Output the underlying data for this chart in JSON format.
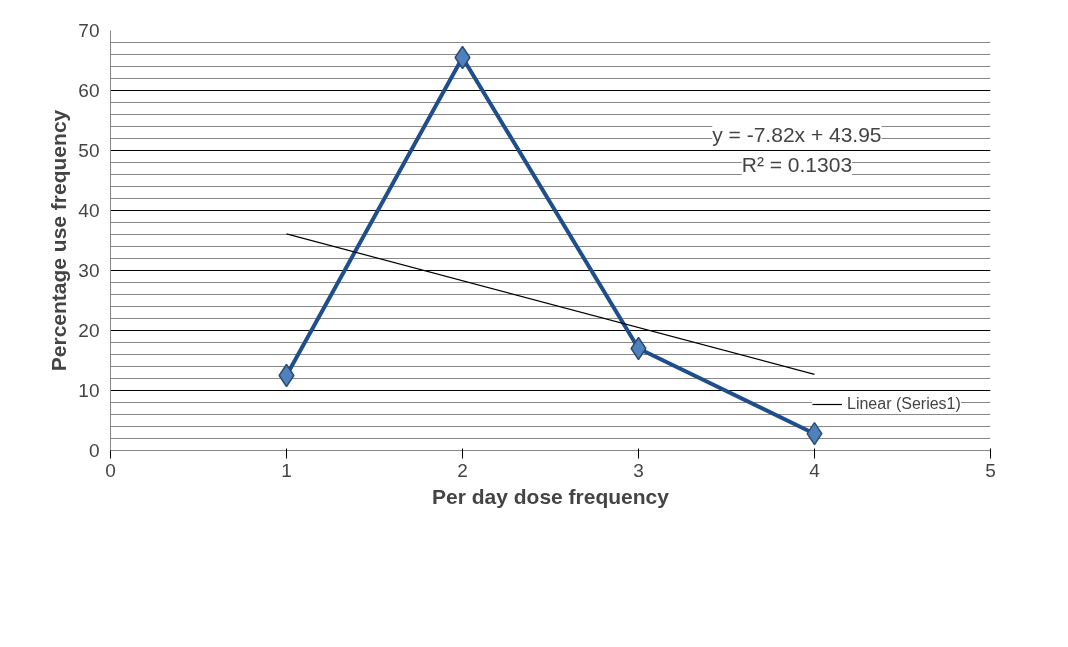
{
  "chart_data": {
    "type": "line",
    "xlabel": "Per day dose frequency",
    "ylabel": "Percentage use frequency",
    "x": [
      1,
      2,
      3,
      4
    ],
    "series": [
      {
        "color": "#1f4e8c",
        "values": [
          12.5,
          65.5,
          17,
          2.8
        ],
        "marker": "diamond"
      },
      {
        "name": "Linear (Series1)",
        "color": "#000000",
        "x": [
          1,
          4
        ],
        "values": [
          36.1,
          12.7
        ],
        "marker": "none"
      }
    ],
    "annotations": [
      "y = -7.82x + 43.95",
      "R² = 0.1303"
    ],
    "xlim": [
      0,
      5
    ],
    "xticks": [
      0,
      1,
      2,
      3,
      4,
      5
    ],
    "ylim": [
      0,
      70
    ],
    "yticks": [
      0,
      10,
      20,
      30,
      40,
      50,
      60,
      70
    ],
    "grid": "y",
    "legend": "bottom right"
  }
}
